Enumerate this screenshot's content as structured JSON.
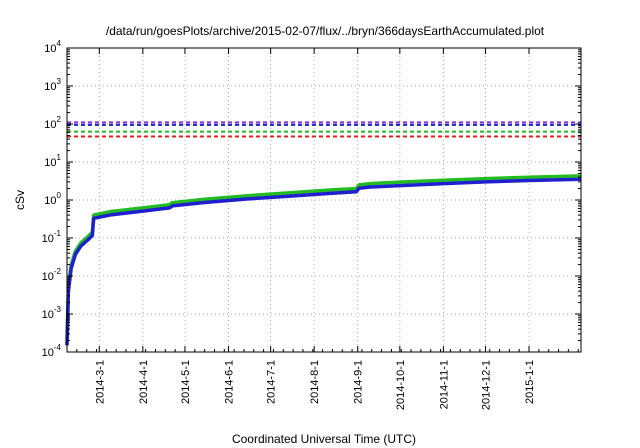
{
  "chart_data": {
    "type": "line",
    "title": "/data/run/goesPlots/archive/2015-02-07/flux/../bryn/366daysEarthAccumulated.plot",
    "xlabel": "Coordinated Universal Time (UTC)",
    "ylabel": "cSv",
    "yscale": "log",
    "ylim": [
      0.0001,
      10000
    ],
    "xlim": [
      "2014-02-06",
      "2015-02-07"
    ],
    "grid": true,
    "y_ticks": [
      {
        "base": "10",
        "exp": "-4",
        "value": 0.0001
      },
      {
        "base": "10",
        "exp": "-3",
        "value": 0.001
      },
      {
        "base": "10",
        "exp": "-2",
        "value": 0.01
      },
      {
        "base": "10",
        "exp": "-1",
        "value": 0.1
      },
      {
        "base": "10",
        "exp": "0",
        "value": 1
      },
      {
        "base": "10",
        "exp": "1",
        "value": 10
      },
      {
        "base": "10",
        "exp": "2",
        "value": 100
      },
      {
        "base": "10",
        "exp": "3",
        "value": 1000
      },
      {
        "base": "10",
        "exp": "4",
        "value": 10000
      }
    ],
    "x_ticks": [
      {
        "label": "2014-3-1",
        "date": "2014-03-01"
      },
      {
        "label": "2014-4-1",
        "date": "2014-04-01"
      },
      {
        "label": "2014-5-1",
        "date": "2014-05-01"
      },
      {
        "label": "2014-6-1",
        "date": "2014-06-01"
      },
      {
        "label": "2014-7-1",
        "date": "2014-07-01"
      },
      {
        "label": "2014-8-1",
        "date": "2014-08-01"
      },
      {
        "label": "2014-9-1",
        "date": "2014-09-01"
      },
      {
        "label": "2014-10-1",
        "date": "2014-10-01"
      },
      {
        "label": "2014-11-1",
        "date": "2014-11-01"
      },
      {
        "label": "2014-12-1",
        "date": "2014-12-01"
      },
      {
        "label": "2015-1-1",
        "date": "2015-01-01"
      }
    ],
    "threshold_lines": [
      {
        "value": 110,
        "color": "#8a2be2"
      },
      {
        "value": 95,
        "color": "#1f1fd0"
      },
      {
        "value": 63,
        "color": "#22bb22"
      },
      {
        "value": 47,
        "color": "#e02020"
      }
    ],
    "series": [
      {
        "color": "#22bb22",
        "points": [
          [
            "2014-02-06",
            0.0002
          ],
          [
            "2014-02-07",
            0.005
          ],
          [
            "2014-02-09",
            0.02
          ],
          [
            "2014-02-12",
            0.045
          ],
          [
            "2014-02-16",
            0.075
          ],
          [
            "2014-02-21",
            0.11
          ],
          [
            "2014-02-24",
            0.14
          ],
          [
            "2014-02-25",
            0.4
          ],
          [
            "2014-03-10",
            0.5
          ],
          [
            "2014-04-01",
            0.62
          ],
          [
            "2014-04-20",
            0.75
          ],
          [
            "2014-04-22",
            0.85
          ],
          [
            "2014-05-15",
            1.05
          ],
          [
            "2014-06-15",
            1.3
          ],
          [
            "2014-07-15",
            1.55
          ],
          [
            "2014-08-15",
            1.85
          ],
          [
            "2014-08-31",
            2.0
          ],
          [
            "2014-09-02",
            2.5
          ],
          [
            "2014-09-10",
            2.7
          ],
          [
            "2014-10-01",
            2.95
          ],
          [
            "2014-11-01",
            3.3
          ],
          [
            "2014-12-01",
            3.65
          ],
          [
            "2015-01-01",
            3.95
          ],
          [
            "2015-02-07",
            4.3
          ]
        ]
      },
      {
        "color": "#1f1fd0",
        "points": [
          [
            "2014-02-06",
            0.00015
          ],
          [
            "2014-02-07",
            0.004
          ],
          [
            "2014-02-09",
            0.016
          ],
          [
            "2014-02-12",
            0.037
          ],
          [
            "2014-02-16",
            0.062
          ],
          [
            "2014-02-21",
            0.09
          ],
          [
            "2014-02-24",
            0.115
          ],
          [
            "2014-02-25",
            0.33
          ],
          [
            "2014-03-10",
            0.41
          ],
          [
            "2014-04-01",
            0.51
          ],
          [
            "2014-04-20",
            0.62
          ],
          [
            "2014-04-22",
            0.7
          ],
          [
            "2014-05-15",
            0.86
          ],
          [
            "2014-06-15",
            1.07
          ],
          [
            "2014-07-15",
            1.27
          ],
          [
            "2014-08-15",
            1.52
          ],
          [
            "2014-08-31",
            1.64
          ],
          [
            "2014-09-02",
            2.05
          ],
          [
            "2014-09-10",
            2.2
          ],
          [
            "2014-10-01",
            2.4
          ],
          [
            "2014-11-01",
            2.7
          ],
          [
            "2014-12-01",
            3.0
          ],
          [
            "2015-01-01",
            3.25
          ],
          [
            "2015-02-07",
            3.5
          ]
        ]
      }
    ]
  }
}
